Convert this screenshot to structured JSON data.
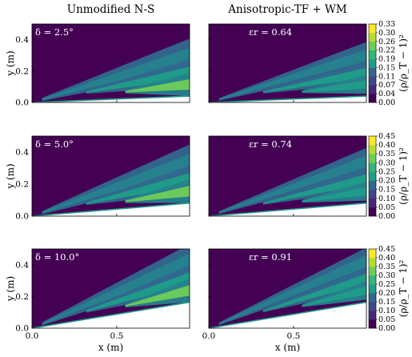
{
  "chart_data": {
    "type": "heatmap",
    "column_titles": [
      "Unmodified N-S",
      "Anisotropic-TF + WM"
    ],
    "xlabel": "x (m)",
    "ylabel": "y (m)",
    "colorbar_label": "(ρ/ρ_T − 1)²",
    "colormap": "viridis",
    "xlim": [
      0,
      0.93
    ],
    "ylim": [
      0,
      0.5
    ],
    "x_ticks": [
      "0.0",
      "0.5"
    ],
    "y_ticks": [
      "0.0",
      "0.2",
      "0.4"
    ],
    "rows": [
      {
        "left_annotation": "δ = 2.5°",
        "right_annotation": "ε_r = 0.64",
        "wedge_angle_deg": 2.5,
        "colorbar_ticks": [
          "0.00",
          "0.04",
          "0.07",
          "0.11",
          "0.15",
          "0.19",
          "0.22",
          "0.26",
          "0.30",
          "0.33"
        ]
      },
      {
        "left_annotation": "δ = 5.0°",
        "right_annotation": "ε_r = 0.74",
        "wedge_angle_deg": 5.0,
        "colorbar_ticks": [
          "0.00",
          "0.05",
          "0.10",
          "0.15",
          "0.20",
          "0.25",
          "0.30",
          "0.35",
          "0.40",
          "0.45"
        ]
      },
      {
        "left_annotation": "δ = 10.0°",
        "right_annotation": "ε_r = 0.91",
        "wedge_angle_deg": 10.0,
        "colorbar_ticks": [
          "0.00",
          "0.05",
          "0.10",
          "0.15",
          "0.20",
          "0.25",
          "0.30",
          "0.35",
          "0.40",
          "0.45"
        ]
      }
    ]
  }
}
